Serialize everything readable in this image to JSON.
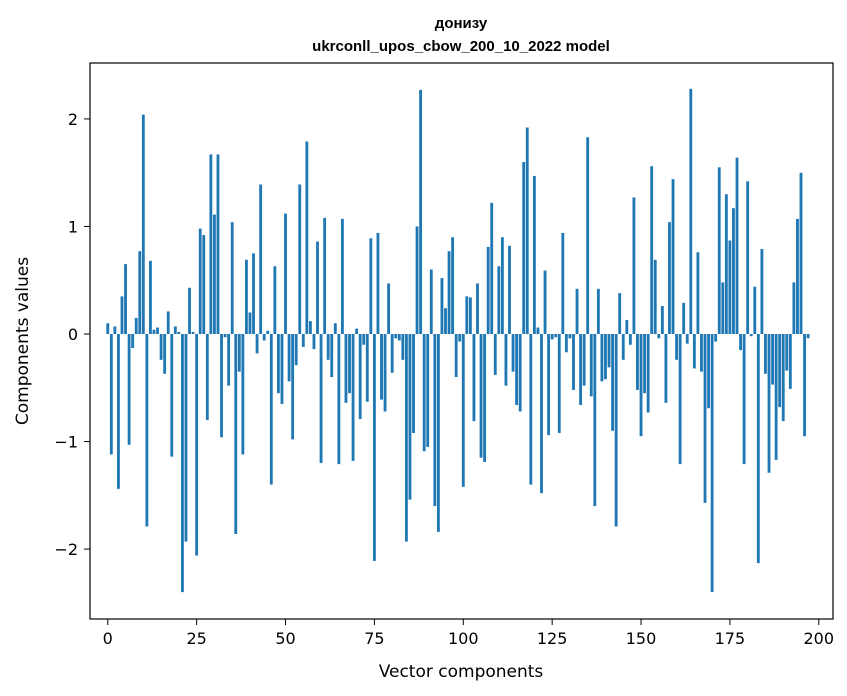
{
  "chart_data": {
    "type": "bar",
    "title": "донизу",
    "subtitle": "ukrconll_upos_cbow_200_10_2022 model",
    "xlabel": "Vector components",
    "ylabel": "Components values",
    "xlim": [
      -5,
      204
    ],
    "ylim": [
      -2.65,
      2.52
    ],
    "xticks": [
      0,
      25,
      50,
      75,
      100,
      125,
      150,
      175,
      200
    ],
    "yticks": [
      -2,
      -1,
      0,
      1,
      2
    ],
    "xtick_labels": [
      "0",
      "25",
      "50",
      "75",
      "100",
      "125",
      "150",
      "175",
      "200"
    ],
    "ytick_labels": [
      "−2",
      "−1",
      "0",
      "1",
      "2"
    ],
    "grid": false,
    "bar_color": "#1f77b4",
    "values": [
      0.1,
      -1.12,
      0.07,
      -1.44,
      0.35,
      0.65,
      -1.03,
      -0.13,
      0.15,
      0.77,
      2.04,
      -1.79,
      0.68,
      0.04,
      0.06,
      -0.24,
      -0.37,
      0.21,
      -1.14,
      0.07,
      0.02,
      -2.4,
      -1.93,
      0.43,
      0.02,
      -2.06,
      0.98,
      0.92,
      -0.8,
      1.67,
      1.11,
      1.67,
      -0.96,
      -0.03,
      -0.48,
      1.04,
      -1.86,
      -0.35,
      -1.12,
      0.69,
      0.2,
      0.75,
      -0.18,
      1.39,
      -0.06,
      0.03,
      -1.4,
      0.63,
      -0.55,
      -0.65,
      1.12,
      -0.44,
      -0.98,
      -0.29,
      1.39,
      -0.12,
      1.79,
      0.12,
      -0.14,
      0.86,
      -1.2,
      1.08,
      -0.24,
      -0.4,
      0.1,
      -1.21,
      1.07,
      -0.64,
      -0.55,
      -1.18,
      0.05,
      -0.79,
      -0.1,
      -0.63,
      0.89,
      -2.11,
      0.94,
      -0.61,
      -0.72,
      0.47,
      -0.36,
      -0.04,
      -0.06,
      -0.24,
      -1.93,
      -1.54,
      -0.92,
      1.0,
      2.27,
      -1.09,
      -1.05,
      0.6,
      -1.6,
      -1.84,
      0.52,
      0.24,
      0.77,
      0.9,
      -0.4,
      -0.07,
      -1.42,
      0.35,
      0.34,
      -0.81,
      0.47,
      -1.15,
      -1.19,
      0.81,
      1.22,
      -0.38,
      0.63,
      0.9,
      -0.48,
      0.82,
      -0.35,
      -0.66,
      -0.72,
      1.6,
      1.92,
      -1.4,
      1.47,
      0.06,
      -1.48,
      0.59,
      -0.94,
      -0.05,
      -0.03,
      -0.92,
      0.94,
      -0.17,
      -0.04,
      -0.52,
      0.42,
      -0.66,
      -0.48,
      1.83,
      -0.58,
      -1.6,
      0.42,
      -0.44,
      -0.42,
      -0.31,
      -0.9,
      -1.79,
      0.38,
      -0.24,
      0.13,
      -0.1,
      1.27,
      -0.52,
      -0.95,
      -0.55,
      -0.73,
      1.56,
      0.69,
      -0.04,
      0.26,
      -0.64,
      1.04,
      1.44,
      -0.24,
      -1.21,
      0.29,
      -0.09,
      2.28,
      -0.32,
      0.76,
      -0.35,
      -1.57,
      -0.69,
      -2.4,
      -0.07,
      1.55,
      0.48,
      1.3,
      0.87,
      1.17,
      1.64,
      -0.15,
      -1.21,
      1.42,
      -0.02,
      0.44,
      -2.13,
      0.79,
      -0.37,
      -1.29,
      -0.47,
      -1.17,
      -0.68,
      -0.81,
      -0.34,
      -0.51,
      0.48,
      1.07,
      1.5,
      -0.95,
      -0.04
    ]
  }
}
